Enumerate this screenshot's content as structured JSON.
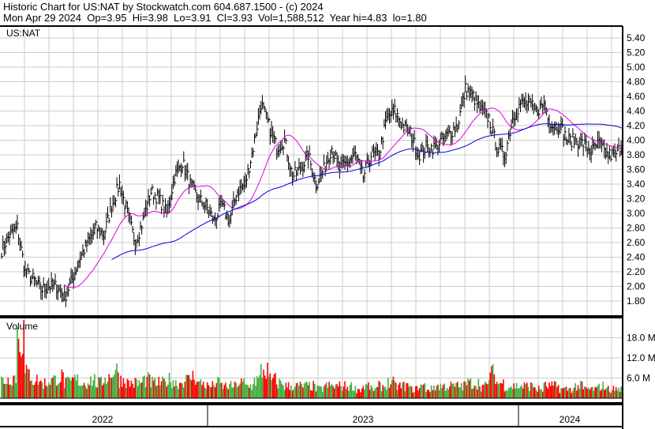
{
  "header": {
    "title": "Historic Chart for US:NAT by Stockwatch.com 604.687.1500 - (c) 2024",
    "quote": "Mon Apr 29 2024  Op=3.95  Hi=3.98  Lo=3.91  Cl=3.93  Vol=1,588,512  Year hi=4.83  lo=1.80"
  },
  "chart_data": [
    {
      "type": "ohlc",
      "title": "US:NAT",
      "y_ticks": [
        "5.40",
        "5.20",
        "5.00",
        "4.80",
        "4.60",
        "4.40",
        "4.20",
        "4.00",
        "3.80",
        "3.60",
        "3.40",
        "3.20",
        "3.00",
        "2.80",
        "2.60",
        "2.40",
        "2.20",
        "2.00",
        "1.80"
      ],
      "ylim": [
        1.7,
        5.5
      ],
      "x_labels": [
        "2022",
        "2023",
        "2024"
      ],
      "grid": true,
      "approx_closes": [
        2.5,
        2.7,
        2.8,
        2.2,
        2.1,
        1.95,
        2.0,
        2.0,
        1.85,
        2.1,
        2.4,
        2.6,
        2.8,
        2.7,
        3.1,
        3.4,
        3.0,
        2.6,
        2.9,
        3.3,
        3.2,
        3.0,
        3.5,
        3.7,
        3.4,
        3.2,
        3.1,
        2.9,
        3.1,
        2.9,
        3.3,
        3.4,
        3.9,
        4.5,
        4.2,
        3.9,
        4.0,
        3.5,
        3.6,
        3.8,
        3.4,
        3.6,
        3.9,
        3.6,
        3.7,
        3.8,
        3.5,
        3.8,
        3.8,
        4.3,
        4.4,
        4.2,
        4.1,
        3.8,
        3.9,
        3.9,
        4.0,
        4.1,
        4.2,
        4.7,
        4.6,
        4.4,
        4.3,
        3.9,
        3.8,
        4.3,
        4.5,
        4.5,
        4.4,
        4.5,
        4.2,
        4.2,
        4.0,
        4.0,
        3.95,
        3.85,
        3.95,
        3.8,
        3.8,
        3.93
      ],
      "moving_averages": [
        {
          "color": "#e000e0"
        },
        {
          "color": "#0000e0"
        }
      ]
    },
    {
      "type": "bar",
      "title": "Volume",
      "y_ticks": [
        "18.0 M",
        "12.0 M",
        "6.0 M"
      ],
      "ylim": [
        0,
        24
      ],
      "approx_volume_millions": [
        6,
        7,
        21,
        8,
        6,
        5,
        6,
        7,
        5,
        6,
        5,
        6,
        5,
        7,
        9,
        6,
        5,
        5,
        6,
        5,
        5,
        6,
        5,
        6,
        7,
        5,
        4,
        5,
        4,
        4,
        5,
        4,
        6,
        9,
        6,
        5,
        4,
        4,
        4,
        4,
        3,
        4,
        4,
        4,
        4,
        3,
        4,
        3,
        4,
        5,
        4,
        4,
        3,
        4,
        3,
        4,
        4,
        4,
        4,
        5,
        5,
        4,
        8,
        5,
        4,
        4,
        4,
        4,
        3,
        4,
        4,
        3,
        3,
        4,
        3,
        3,
        4,
        3,
        3,
        3
      ],
      "colors": {
        "up": "#40b040",
        "down": "#ff0000"
      }
    }
  ]
}
